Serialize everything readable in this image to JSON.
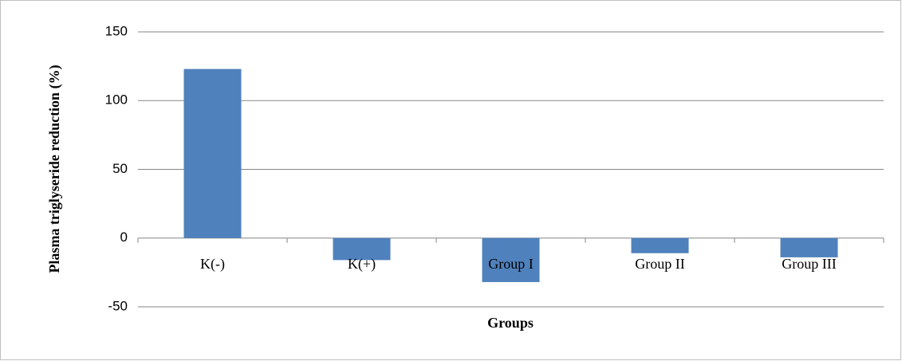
{
  "chart_data": {
    "type": "bar",
    "x_label": "Groups",
    "y_label": "Plasma triglyseride reduction (%)",
    "categories": [
      "K(-)",
      "K(+)",
      "Group I",
      "Group II",
      "Group III"
    ],
    "values": [
      123,
      -16,
      -32,
      -11,
      -14
    ],
    "color": "#4f81bd",
    "ylim": [
      -50,
      150
    ],
    "yticks": [
      -50,
      0,
      50,
      100,
      150
    ],
    "grid": true
  }
}
